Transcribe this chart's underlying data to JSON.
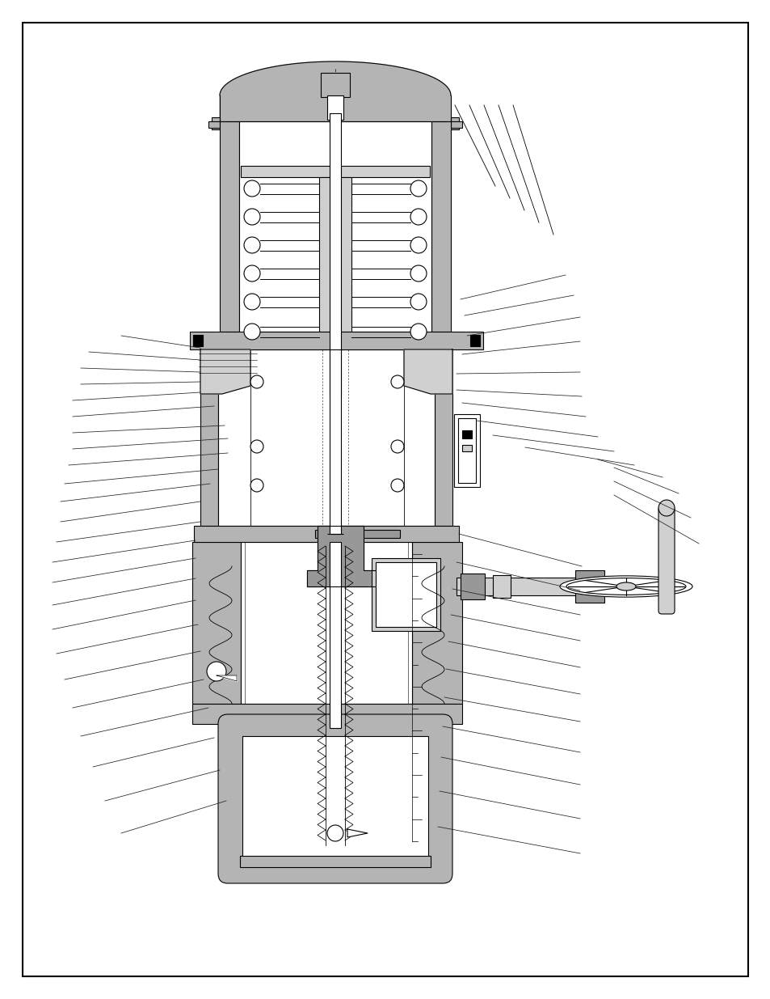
{
  "background_color": "#ffffff",
  "border_color": "#000000",
  "line_color": "#000000",
  "gray_fill": "#b4b4b4",
  "light_gray": "#d0d0d0",
  "mid_gray": "#989898",
  "page_width": 9.54,
  "page_height": 12.35,
  "border_lw": 1.5,
  "diagram_lw": 0.8,
  "leader_lw": 0.55
}
